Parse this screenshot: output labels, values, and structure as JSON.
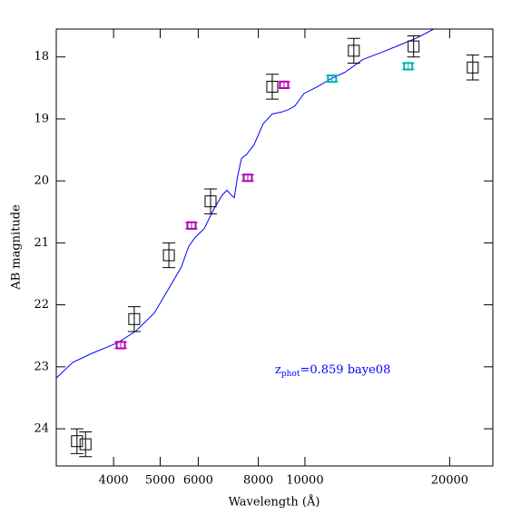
{
  "chart_data": {
    "type": "scatter",
    "xlabel": "Wavelength (Å)",
    "ylabel": "AB magnitude",
    "xscale": "log",
    "xlim": [
      3040,
      24600
    ],
    "ylim": [
      24.6,
      17.55
    ],
    "xticks": [
      4000,
      5000,
      6000,
      8000,
      10000,
      20000
    ],
    "yticks": [
      18,
      19,
      20,
      21,
      22,
      23,
      24
    ],
    "annotation": {
      "main": "z",
      "sub": "phot",
      "rest": "=0.859  baye08",
      "color": "#0000ff"
    },
    "series": [
      {
        "style": "line",
        "color": "#0000ff",
        "x": [
          3041,
          3289,
          3589,
          4083,
          4457,
          4864,
          5188,
          5534,
          5730,
          5913,
          6175,
          6448,
          6730,
          6883,
          7031,
          7130,
          7244,
          7379,
          7568,
          7834,
          8185,
          8551,
          8933,
          9247,
          9533,
          9957,
          10620,
          11340,
          12100,
          13210,
          14390,
          15710,
          17130,
          18530
        ],
        "values": [
          23.18,
          22.93,
          22.79,
          22.61,
          22.42,
          22.13,
          21.76,
          21.39,
          21.06,
          20.91,
          20.77,
          20.47,
          20.23,
          20.15,
          20.23,
          20.27,
          19.93,
          19.64,
          19.57,
          19.42,
          19.08,
          18.92,
          18.89,
          18.85,
          18.79,
          18.59,
          18.48,
          18.35,
          18.25,
          18.04,
          17.93,
          17.81,
          17.69,
          17.55
        ]
      },
      {
        "style": "points",
        "color": "#000000",
        "size": 12,
        "x": [
          3357,
          3497,
          4416,
          5213,
          6365,
          8553,
          12640,
          16830,
          22340
        ],
        "values": [
          24.2,
          24.25,
          22.23,
          21.2,
          20.33,
          18.48,
          17.9,
          17.83,
          18.17
        ],
        "errors": [
          0.2,
          0.2,
          0.2,
          0.2,
          0.2,
          0.2,
          0.2,
          0.17,
          0.2
        ]
      },
      {
        "style": "points",
        "color": "#b000b0",
        "size": 9,
        "x": [
          4140,
          5810,
          7606,
          9050
        ],
        "values": [
          22.65,
          20.72,
          19.95,
          18.45
        ],
        "errors": [
          0.05,
          0.05,
          0.05,
          0.05
        ]
      },
      {
        "style": "points",
        "color": "#00b0b0",
        "size": 9,
        "x": [
          11390,
          16400
        ],
        "values": [
          18.35,
          18.15
        ],
        "errors": [
          0.05,
          0.05
        ]
      }
    ]
  }
}
